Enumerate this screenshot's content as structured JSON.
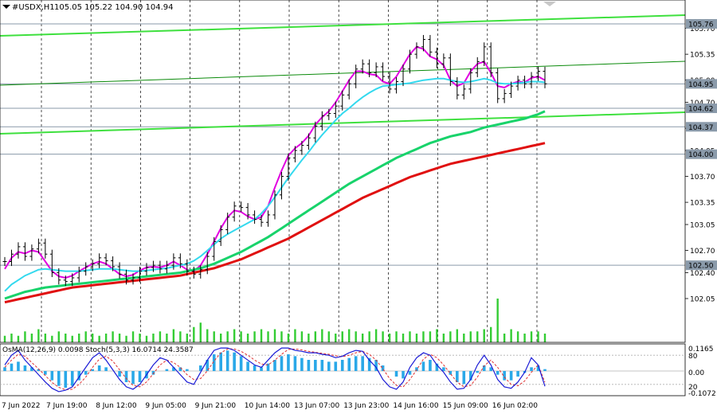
{
  "header": {
    "symbol": "#USDX,H1",
    "ohlc": "105.05 105.22 104.90 104.94"
  },
  "indicator_label": "OsMA(12,26,9) 0.0098  Stoch(5,3,3) 16.0714 24.3587",
  "colors": {
    "price": "#000000",
    "ma_fast": "#e100e1",
    "ma_mid": "#33d9ee",
    "ma_slow1": "#18d36b",
    "ma_slow2": "#e01010",
    "channel": "#3ee03e",
    "osma": "#2aa8e8",
    "stoch_main": "#1a1ad6",
    "stoch_signal": "#e03030",
    "volume": "#33cc33",
    "level": "#8a9aaa"
  },
  "chart_data": [
    {
      "type": "line",
      "name": "main",
      "ylim": [
        102.0,
        106.0
      ],
      "y_ticks": [
        "105.70",
        "105.35",
        "105.00",
        "104.70",
        "104.35",
        "104.05",
        "103.70",
        "103.35",
        "103.05",
        "102.70",
        "102.40",
        "102.05"
      ],
      "x_ticks": [
        "7 Jun 2022",
        "7 Jun 19:00",
        "8 Jun 12:00",
        "9 Jun 05:00",
        "9 Jun 21:00",
        "10 Jun 14:00",
        "13 Jun 07:00",
        "13 Jun 23:00",
        "14 Jun 16:00",
        "15 Jun 09:00",
        "16 Jun 02:00"
      ],
      "levels": [
        {
          "value": 105.76,
          "label": "105.76"
        },
        {
          "value": 104.95,
          "label": "104.95"
        },
        {
          "value": 104.62,
          "label": "104.62"
        },
        {
          "value": 104.37,
          "label": "104.37"
        },
        {
          "value": 104.0,
          "label": "104.00"
        },
        {
          "value": 102.5,
          "label": "102.50"
        }
      ],
      "price": [
        102.55,
        102.65,
        102.75,
        102.62,
        102.72,
        102.8,
        102.65,
        102.4,
        102.3,
        102.28,
        102.33,
        102.42,
        102.48,
        102.52,
        102.6,
        102.56,
        102.48,
        102.38,
        102.3,
        102.33,
        102.42,
        102.47,
        102.5,
        102.45,
        102.5,
        102.6,
        102.52,
        102.42,
        102.38,
        102.44,
        102.62,
        102.82,
        102.98,
        103.15,
        103.3,
        103.28,
        103.18,
        103.12,
        103.08,
        103.18,
        103.45,
        103.7,
        103.95,
        104.05,
        104.12,
        104.22,
        104.38,
        104.52,
        104.55,
        104.65,
        104.8,
        104.95,
        105.15,
        105.22,
        105.1,
        105.18,
        105.05,
        104.88,
        104.98,
        105.15,
        105.35,
        105.45,
        105.55,
        105.38,
        105.22,
        105.3,
        104.98,
        104.8,
        104.88,
        105.1,
        105.25,
        105.45,
        105.1,
        104.75,
        104.82,
        104.92,
        105.0,
        104.95,
        105.05,
        105.12,
        104.95
      ],
      "series": [
        {
          "name": "",
          "values": [
            102.45,
            102.6,
            102.68,
            102.66,
            102.7,
            102.68,
            102.55,
            102.42,
            102.35,
            102.33,
            102.36,
            102.42,
            102.47,
            102.52,
            102.55,
            102.52,
            102.45,
            102.38,
            102.35,
            102.37,
            102.43,
            102.47,
            102.48,
            102.47,
            102.5,
            102.55,
            102.5,
            102.44,
            102.42,
            102.5,
            102.65,
            102.82,
            103.0,
            103.15,
            103.24,
            103.22,
            103.16,
            103.12,
            103.15,
            103.3,
            103.55,
            103.78,
            103.98,
            104.08,
            104.15,
            104.25,
            104.4,
            104.5,
            104.58,
            104.7,
            104.85,
            105.0,
            105.12,
            105.12,
            105.08,
            105.07,
            104.98,
            104.95,
            105.05,
            105.2,
            105.35,
            105.45,
            105.42,
            105.32,
            105.28,
            105.2,
            105.0,
            104.92,
            104.96,
            105.12,
            105.22,
            105.25,
            105.1,
            104.92,
            104.9,
            104.95,
            104.98,
            104.97,
            105.03,
            105.05,
            105.0
          ]
        },
        {
          "name": "",
          "values": [
            102.15,
            102.24,
            102.3,
            102.36,
            102.4,
            102.44,
            102.45,
            102.44,
            102.43,
            102.42,
            102.42,
            102.42,
            102.43,
            102.44,
            102.45,
            102.45,
            102.45,
            102.44,
            102.43,
            102.42,
            102.42,
            102.43,
            102.44,
            102.45,
            102.46,
            102.48,
            102.5,
            102.52,
            102.56,
            102.62,
            102.7,
            102.78,
            102.86,
            102.92,
            102.97,
            103.02,
            103.07,
            103.12,
            103.2,
            103.3,
            103.42,
            103.55,
            103.68,
            103.8,
            103.92,
            104.03,
            104.15,
            104.26,
            104.36,
            104.46,
            104.55,
            104.62,
            104.7,
            104.77,
            104.83,
            104.88,
            104.92,
            104.93,
            104.94,
            104.95,
            104.96,
            104.98,
            105.0,
            105.01,
            105.02,
            105.02,
            105.0,
            104.98,
            104.97,
            104.98,
            105.0,
            105.02,
            105.0,
            104.96,
            104.95,
            104.95,
            104.96,
            104.97,
            104.98,
            104.98,
            104.97
          ]
        },
        {
          "name": "",
          "values": [
            102.05,
            102.08,
            102.11,
            102.14,
            102.16,
            102.18,
            102.2,
            102.21,
            102.22,
            102.23,
            102.24,
            102.25,
            102.26,
            102.27,
            102.28,
            102.29,
            102.3,
            102.31,
            102.32,
            102.33,
            102.34,
            102.35,
            102.36,
            102.37,
            102.38,
            102.39,
            102.4,
            102.42,
            102.44,
            102.46,
            102.49,
            102.52,
            102.56,
            102.6,
            102.64,
            102.68,
            102.73,
            102.78,
            102.83,
            102.88,
            102.94,
            103.0,
            103.06,
            103.12,
            103.18,
            103.24,
            103.3,
            103.36,
            103.42,
            103.48,
            103.54,
            103.6,
            103.65,
            103.7,
            103.75,
            103.8,
            103.85,
            103.9,
            103.95,
            103.99,
            104.03,
            104.07,
            104.11,
            104.15,
            104.18,
            104.21,
            104.24,
            104.26,
            104.28,
            104.3,
            104.33,
            104.36,
            104.38,
            104.4,
            104.42,
            104.44,
            104.46,
            104.48,
            104.51,
            104.54,
            104.58
          ]
        },
        {
          "name": "",
          "values": [
            102.0,
            102.02,
            102.04,
            102.06,
            102.08,
            102.1,
            102.12,
            102.14,
            102.16,
            102.18,
            102.2,
            102.21,
            102.22,
            102.23,
            102.24,
            102.25,
            102.26,
            102.27,
            102.28,
            102.29,
            102.3,
            102.31,
            102.32,
            102.33,
            102.34,
            102.35,
            102.36,
            102.38,
            102.4,
            102.42,
            102.44,
            102.46,
            102.49,
            102.52,
            102.55,
            102.58,
            102.62,
            102.66,
            102.7,
            102.74,
            102.78,
            102.82,
            102.86,
            102.91,
            102.96,
            103.01,
            103.06,
            103.11,
            103.16,
            103.21,
            103.26,
            103.31,
            103.36,
            103.41,
            103.45,
            103.49,
            103.53,
            103.57,
            103.61,
            103.65,
            103.69,
            103.72,
            103.75,
            103.78,
            103.81,
            103.84,
            103.87,
            103.89,
            103.91,
            103.93,
            103.95,
            103.97,
            103.99,
            104.01,
            104.03,
            104.05,
            104.07,
            104.09,
            104.11,
            104.13,
            104.15
          ]
        }
      ],
      "volume": [
        3,
        4,
        3,
        5,
        4,
        6,
        4,
        3,
        5,
        4,
        3,
        4,
        5,
        4,
        3,
        4,
        5,
        4,
        3,
        5,
        4,
        3,
        4,
        5,
        4,
        6,
        5,
        4,
        7,
        9,
        6,
        5,
        4,
        5,
        6,
        5,
        4,
        5,
        6,
        5,
        6,
        5,
        4,
        6,
        5,
        4,
        5,
        6,
        5,
        4,
        5,
        6,
        5,
        4,
        5,
        6,
        5,
        4,
        5,
        4,
        5,
        4,
        5,
        5,
        6,
        4,
        5,
        6,
        4,
        5,
        5,
        6,
        7,
        20,
        4,
        6,
        5,
        4,
        5,
        5,
        4
      ],
      "osma": [
        0.02,
        0.04,
        0.05,
        0.03,
        0.02,
        0.01,
        -0.02,
        -0.05,
        -0.08,
        -0.09,
        -0.08,
        -0.05,
        -0.02,
        0.01,
        0.03,
        0.02,
        0.0,
        -0.03,
        -0.06,
        -0.07,
        -0.06,
        -0.04,
        -0.02,
        0.0,
        0.01,
        0.02,
        0.02,
        0.01,
        0.0,
        0.03,
        0.06,
        0.09,
        0.1,
        0.11,
        0.1,
        0.08,
        0.05,
        0.03,
        0.02,
        0.04,
        0.06,
        0.08,
        0.09,
        0.08,
        0.07,
        0.06,
        0.06,
        0.06,
        0.05,
        0.05,
        0.06,
        0.07,
        0.08,
        0.08,
        0.07,
        0.06,
        0.03,
        0.0,
        -0.03,
        -0.04,
        -0.02,
        0.02,
        0.05,
        0.06,
        0.04,
        0.02,
        -0.02,
        -0.06,
        -0.07,
        -0.05,
        -0.01,
        0.03,
        0.02,
        -0.02,
        -0.05,
        -0.05,
        -0.03,
        -0.01,
        0.02,
        0.03,
        0.01
      ],
      "stoch_main": [
        60,
        80,
        90,
        70,
        55,
        40,
        25,
        12,
        5,
        8,
        15,
        35,
        55,
        75,
        85,
        70,
        50,
        30,
        15,
        10,
        20,
        40,
        60,
        75,
        70,
        55,
        40,
        25,
        20,
        45,
        70,
        90,
        95,
        95,
        90,
        80,
        70,
        60,
        55,
        70,
        85,
        95,
        95,
        90,
        88,
        85,
        85,
        82,
        80,
        75,
        78,
        85,
        90,
        88,
        70,
        55,
        30,
        15,
        10,
        25,
        55,
        75,
        85,
        80,
        60,
        45,
        25,
        10,
        12,
        30,
        60,
        80,
        60,
        30,
        15,
        12,
        25,
        45,
        75,
        60,
        16
      ],
      "stoch_signal": [
        55,
        70,
        82,
        78,
        65,
        52,
        38,
        24,
        14,
        9,
        10,
        20,
        35,
        55,
        72,
        78,
        68,
        50,
        32,
        18,
        15,
        25,
        42,
        60,
        70,
        65,
        55,
        40,
        30,
        32,
        48,
        68,
        85,
        93,
        93,
        88,
        80,
        70,
        62,
        60,
        70,
        82,
        92,
        93,
        91,
        88,
        86,
        84,
        82,
        79,
        77,
        80,
        85,
        88,
        82,
        70,
        52,
        32,
        18,
        15,
        30,
        50,
        72,
        82,
        75,
        60,
        42,
        25,
        15,
        18,
        35,
        58,
        70,
        55,
        35,
        20,
        17,
        27,
        45,
        60,
        24.36
      ]
    }
  ]
}
